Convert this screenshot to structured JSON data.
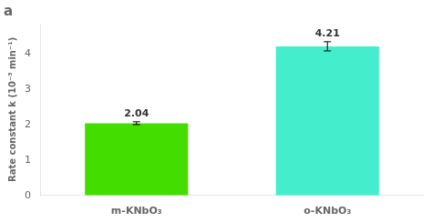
{
  "chart_data": {
    "type": "bar",
    "title": "a",
    "categories": [
      "m-KNbO₃",
      "o-KNbO₃"
    ],
    "values": [
      2.04,
      4.21
    ],
    "errors": [
      0.04,
      0.13
    ],
    "colors": [
      "#44dd00",
      "#44eecc"
    ],
    "y_label": "Rate constant k (10⁻³ min⁻¹)",
    "ylim": [
      0,
      4.85
    ],
    "yticks": [
      0,
      1,
      2,
      3,
      4
    ],
    "grid": false,
    "data_labels": true
  }
}
